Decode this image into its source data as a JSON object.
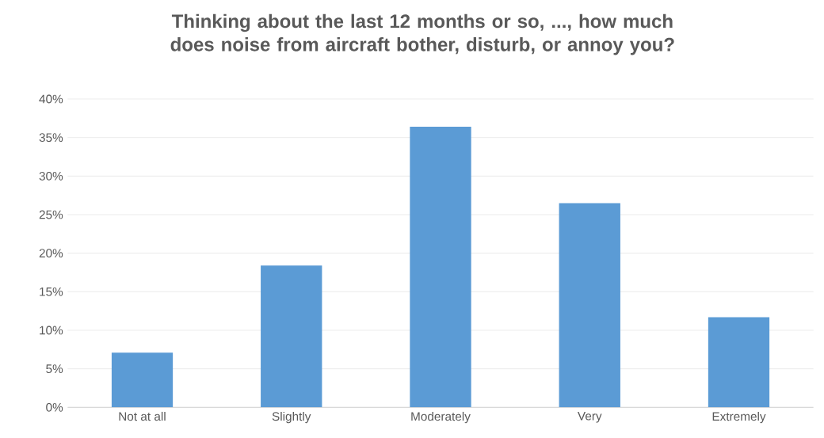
{
  "chart_data": {
    "type": "bar",
    "title": "Thinking about the last 12 months or so, ..., how much does noise from aircraft  bother, disturb, or annoy you?",
    "categories": [
      "Not at all",
      "Slightly",
      "Moderately",
      "Very",
      "Extremely"
    ],
    "values": [
      7.1,
      18.4,
      36.4,
      26.5,
      11.7
    ],
    "color": "#5b9bd5",
    "ylim": [
      0,
      40
    ],
    "yticks": [
      {
        "value": 0,
        "label": "0%"
      },
      {
        "value": 5,
        "label": "5%"
      },
      {
        "value": 10,
        "label": "10%"
      },
      {
        "value": 15,
        "label": "15%"
      },
      {
        "value": 20,
        "label": "20%"
      },
      {
        "value": 25,
        "label": "25%"
      },
      {
        "value": 30,
        "label": "30%"
      },
      {
        "value": 35,
        "label": "35%"
      },
      {
        "value": 40,
        "label": "40%"
      }
    ],
    "grid": "y"
  }
}
